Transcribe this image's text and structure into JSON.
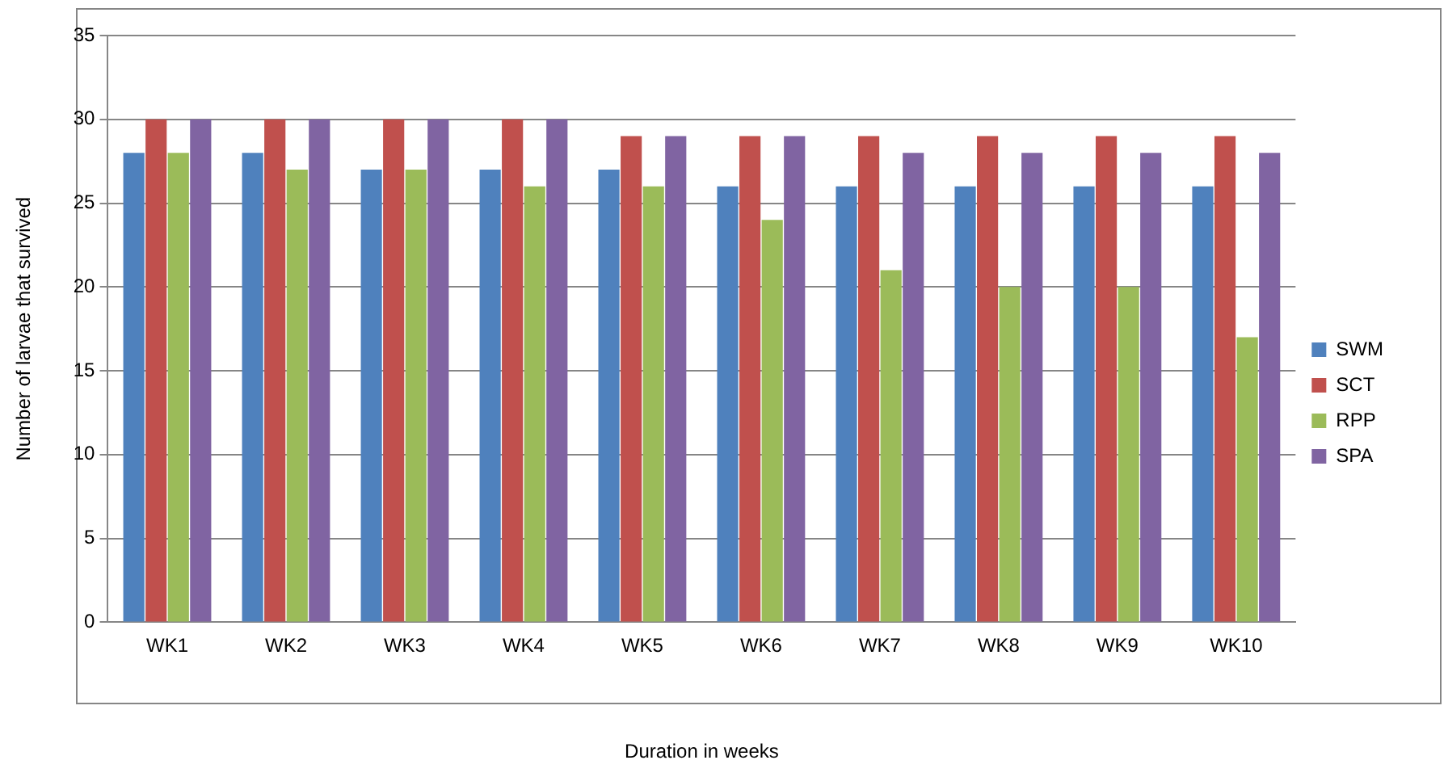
{
  "chart_data": {
    "type": "bar",
    "xlabel": "Duration in weeks",
    "ylabel": "Number of larvae that survived",
    "categories": [
      "WK1",
      "WK2",
      "WK3",
      "WK4",
      "WK5",
      "WK6",
      "WK7",
      "WK8",
      "WK9",
      "WK10"
    ],
    "series": [
      {
        "name": "SWM",
        "color": "#4f81bd",
        "values": [
          28,
          28,
          27,
          27,
          27,
          26,
          26,
          26,
          26,
          26
        ]
      },
      {
        "name": "SCT",
        "color": "#c0504d",
        "values": [
          30,
          30,
          30,
          30,
          29,
          29,
          29,
          29,
          29,
          29
        ]
      },
      {
        "name": "RPP",
        "color": "#9bbb59",
        "values": [
          28,
          27,
          27,
          26,
          26,
          24,
          21,
          20,
          20,
          17
        ]
      },
      {
        "name": "SPA",
        "color": "#8064a2",
        "values": [
          30,
          30,
          30,
          30,
          29,
          29,
          28,
          28,
          28,
          28
        ]
      }
    ],
    "ylim": [
      0,
      35
    ],
    "yticks": [
      0,
      5,
      10,
      15,
      20,
      25,
      30,
      35
    ],
    "grid": "y",
    "legend": "right"
  }
}
